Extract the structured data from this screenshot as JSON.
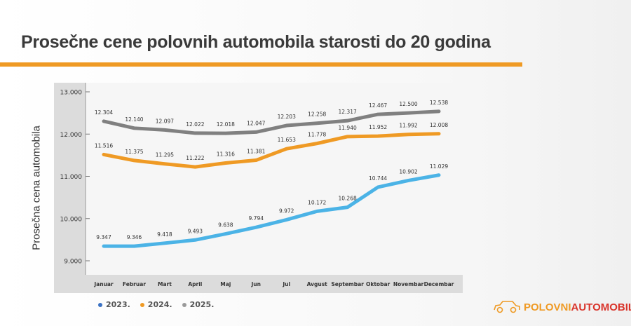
{
  "chart_data": {
    "type": "line",
    "title": "Prosečne cene polovnih automobila starosti do 20 godina",
    "ylabel": "Prosečna cena automobila",
    "xlabel": "",
    "ylim": [
      9000,
      13000
    ],
    "yticks": [
      "9.000",
      "10.000",
      "11.000",
      "12.000",
      "13.000"
    ],
    "ytick_values": [
      9000,
      10000,
      11000,
      12000,
      13000
    ],
    "categories": [
      "Januar",
      "Februar",
      "Mart",
      "April",
      "Maj",
      "Jun",
      "Jul",
      "Avgust",
      "Septembar",
      "Oktobar",
      "Novembar",
      "Decembar"
    ],
    "grid": false,
    "legend_position": "bottom-left",
    "series": [
      {
        "name": "2023.",
        "color": "#4bb3e6",
        "legend_color": "#3b72c4",
        "values": [
          9347,
          9346,
          9418,
          9493,
          9638,
          9794,
          9972,
          10172,
          10268,
          10744,
          10902,
          11029
        ],
        "labels": [
          "9.347",
          "9.346",
          "9.418",
          "9.493",
          "9.638",
          "9.794",
          "9.972",
          "10.172",
          "10.268",
          "10.744",
          "10.902",
          "11.029"
        ]
      },
      {
        "name": "2024.",
        "color": "#ef9a24",
        "legend_color": "#ef9a24",
        "values": [
          11516,
          11375,
          11295,
          11222,
          11316,
          11381,
          11653,
          11778,
          11940,
          11952,
          11992,
          12008
        ],
        "labels": [
          "11.516",
          "11.375",
          "11.295",
          "11.222",
          "11.316",
          "11.381",
          "11.653",
          "11.778",
          "11.940",
          "11.952",
          "11.992",
          "12.008"
        ]
      },
      {
        "name": "2025.",
        "color": "#808080",
        "legend_color": "#9a9a9a",
        "values": [
          12304,
          12140,
          12097,
          12022,
          12018,
          12047,
          12203,
          12258,
          12317,
          12467,
          12500,
          12538
        ],
        "labels": [
          "12.304",
          "12.140",
          "12.097",
          "12.022",
          "12.018",
          "12.047",
          "12.203",
          "12.258",
          "12.317",
          "12.467",
          "12.500",
          "12.538"
        ]
      }
    ]
  },
  "brand": {
    "part1": "POLOVNI",
    "part2": "AUTOMOBILI",
    "color1": "#ef9a24",
    "color2": "#d9342b"
  }
}
